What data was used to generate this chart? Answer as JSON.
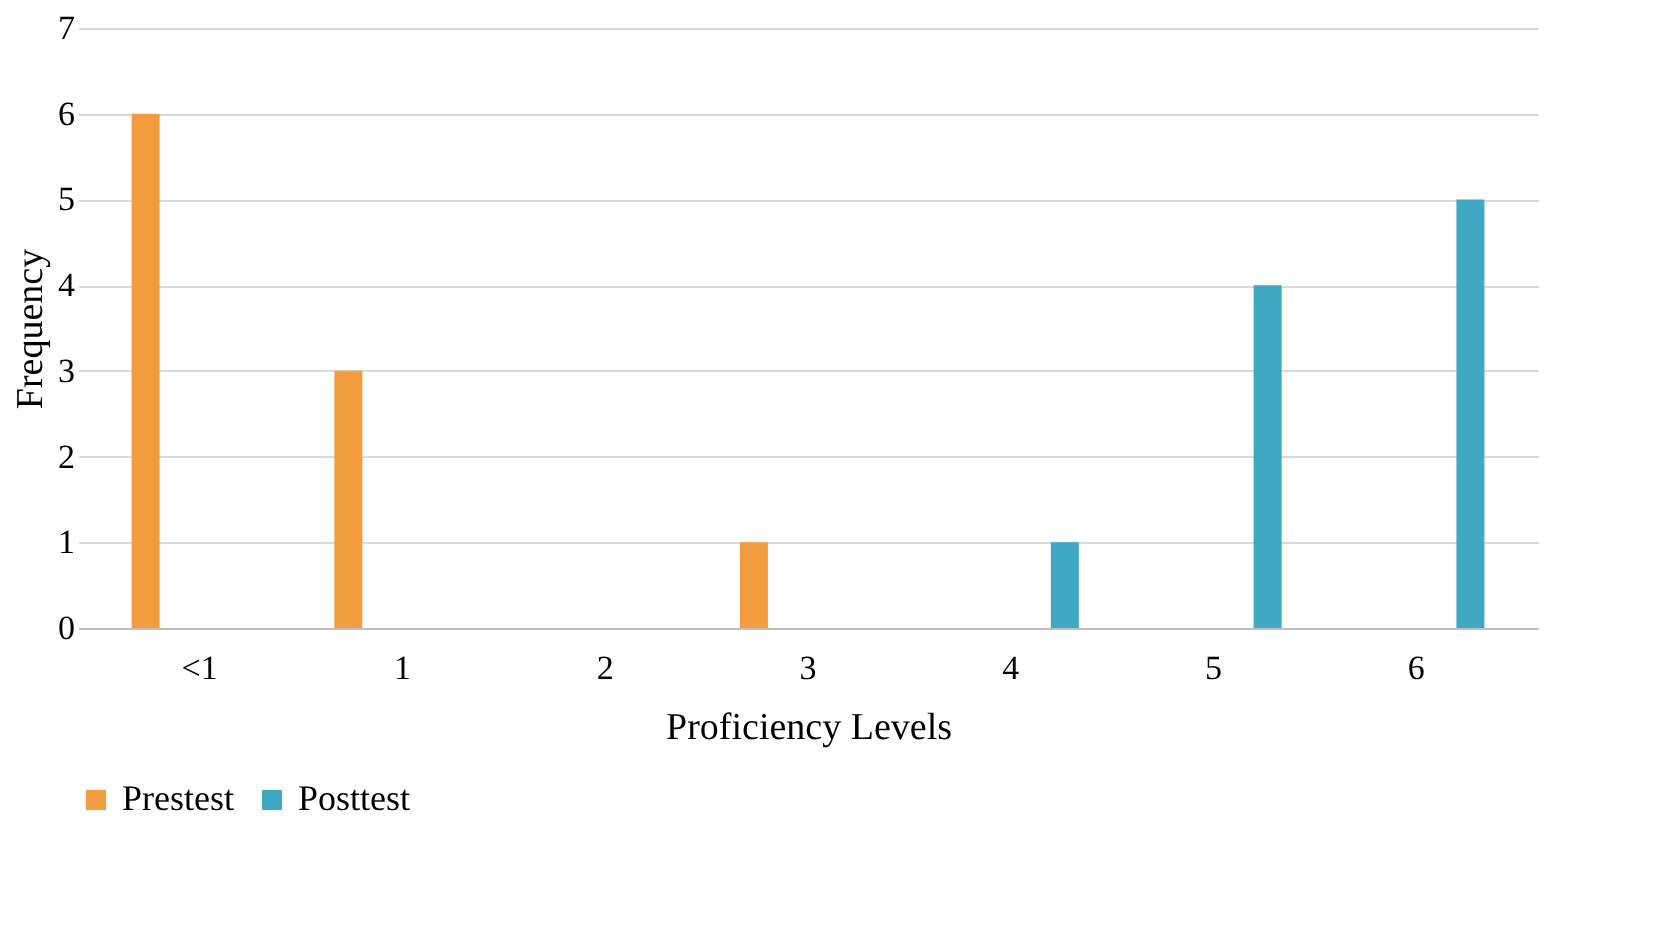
{
  "chart_data": {
    "type": "bar",
    "xlabel": "Proficiency Levels",
    "ylabel": "Frequency",
    "categories": [
      "<1",
      "1",
      "2",
      "3",
      "4",
      "5",
      "6"
    ],
    "series": [
      {
        "name": "Prestest",
        "color": "#f29b3f",
        "values": [
          6,
          3,
          0,
          1,
          0,
          0,
          0
        ]
      },
      {
        "name": "Posttest",
        "color": "#3fa9c4",
        "values": [
          0,
          0,
          0,
          0,
          1,
          4,
          5
        ]
      }
    ],
    "ylim": [
      0,
      7
    ],
    "yticks": [
      0,
      1,
      2,
      3,
      4,
      5,
      6,
      7
    ],
    "grid": "y",
    "legend": "bottom"
  }
}
